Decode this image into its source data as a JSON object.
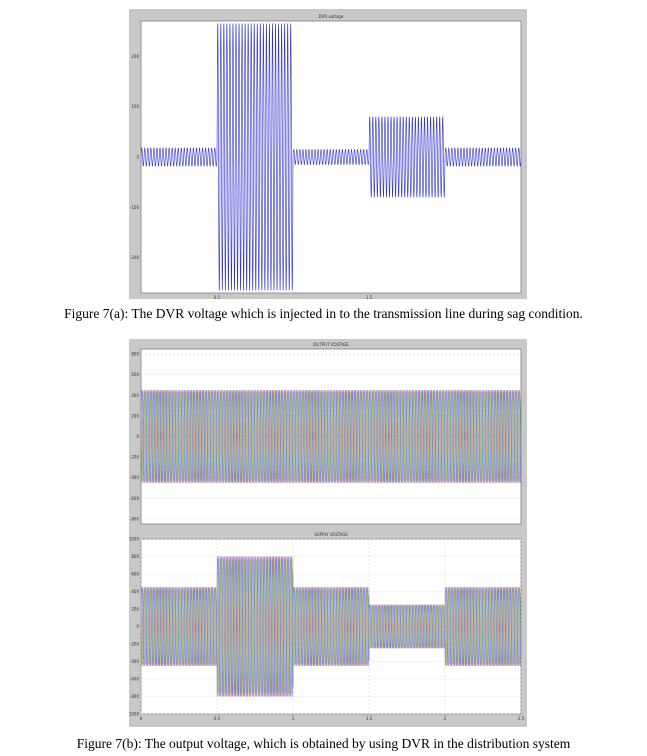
{
  "figure_a": {
    "caption": "Figure 7(a): The DVR voltage which is injected in to the transmission line during sag condition.",
    "plot_title": "DVR voltage",
    "trace_color": "#2f2fd0",
    "chart_data": {
      "type": "line",
      "title": "DVR voltage",
      "x_ticks": [
        "0.5",
        "1.5"
      ],
      "y_ticks": [
        "200",
        "100",
        "0",
        "-100",
        "-200"
      ],
      "ylim": [
        -270,
        270
      ],
      "xlim": [
        0,
        2.5
      ],
      "segments": [
        {
          "x_start": 0.0,
          "x_end": 0.5,
          "amplitude": 18
        },
        {
          "x_start": 0.5,
          "x_end": 1.0,
          "amplitude": 265
        },
        {
          "x_start": 1.0,
          "x_end": 1.5,
          "amplitude": 15
        },
        {
          "x_start": 1.5,
          "x_end": 2.0,
          "amplitude": 80
        },
        {
          "x_start": 2.0,
          "x_end": 2.5,
          "amplitude": 18
        }
      ],
      "grid": false,
      "legend": "none"
    }
  },
  "figure_b": {
    "caption": "Figure 7(b): The output voltage, which is obtained by using   DVR in the distribution system",
    "phase_colors": [
      "#d040d0",
      "#e0c060",
      "#4060e0",
      "#40b040"
    ],
    "chart_data": [
      {
        "type": "line",
        "title": "OUTPUT VOLTAGE",
        "y_ticks": [
          "800",
          "600",
          "400",
          "200",
          "0",
          "-200",
          "-400",
          "-600",
          "-800"
        ],
        "ylim": [
          -850,
          850
        ],
        "xlim": [
          0,
          2.5
        ],
        "segments": [
          {
            "x_start": 0.0,
            "x_end": 0.5,
            "amplitude": 450
          },
          {
            "x_start": 0.5,
            "x_end": 1.0,
            "amplitude": 450
          },
          {
            "x_start": 1.0,
            "x_end": 1.5,
            "amplitude": 450
          },
          {
            "x_start": 1.5,
            "x_end": 2.0,
            "amplitude": 450
          },
          {
            "x_start": 2.0,
            "x_end": 2.5,
            "amplitude": 450
          }
        ],
        "grid": true,
        "legend": "none"
      },
      {
        "type": "line",
        "title": "SUPPLY VOLTAGE",
        "y_ticks": [
          "1000",
          "800",
          "600",
          "400",
          "200",
          "0",
          "-200",
          "-400",
          "-600",
          "-800",
          "-1000"
        ],
        "x_ticks": [
          "0",
          "0.5",
          "1",
          "1.5",
          "2",
          "2.5"
        ],
        "ylim": [
          -1000,
          1000
        ],
        "xlim": [
          0,
          2.5
        ],
        "segments": [
          {
            "x_start": 0.0,
            "x_end": 0.5,
            "amplitude": 450
          },
          {
            "x_start": 0.5,
            "x_end": 1.0,
            "amplitude": 800
          },
          {
            "x_start": 1.0,
            "x_end": 1.5,
            "amplitude": 450
          },
          {
            "x_start": 1.5,
            "x_end": 2.0,
            "amplitude": 250
          },
          {
            "x_start": 2.0,
            "x_end": 2.5,
            "amplitude": 450
          }
        ],
        "grid": true,
        "legend": "none"
      }
    ]
  }
}
